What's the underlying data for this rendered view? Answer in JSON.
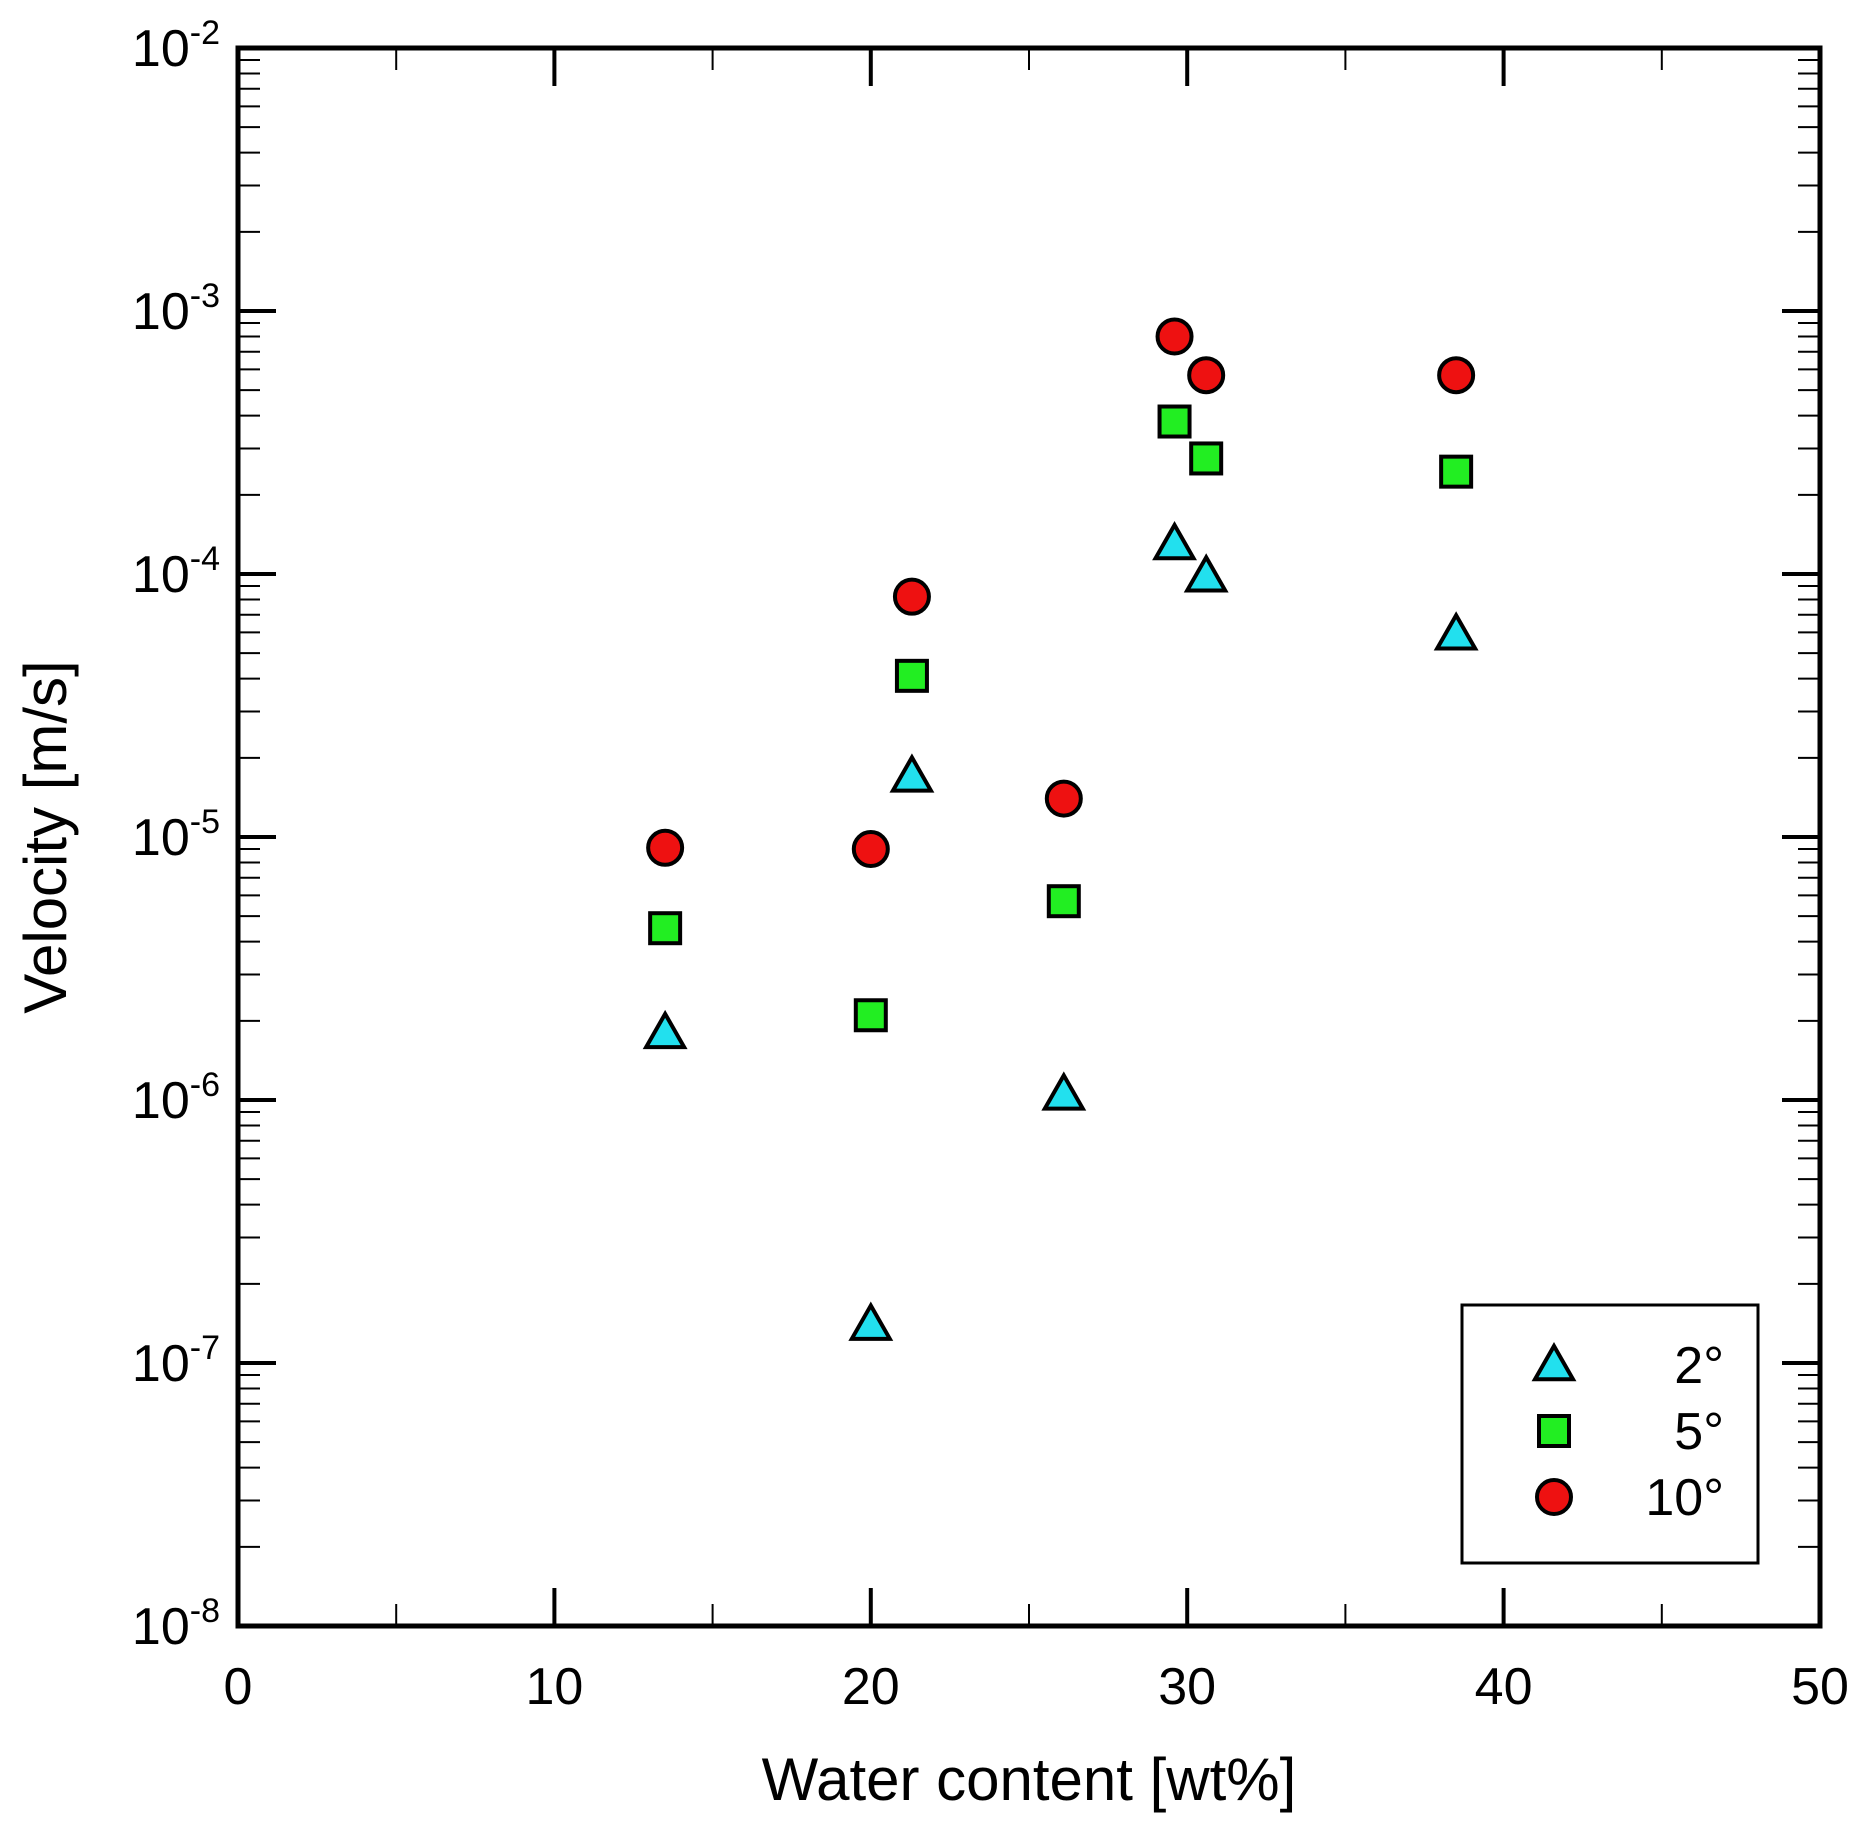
{
  "chart_data": {
    "type": "scatter",
    "title": "",
    "xlabel": "Water content [wt%]",
    "ylabel": "Velocity [m/s]",
    "xlim": [
      0,
      50
    ],
    "ylim": [
      1e-08,
      0.01
    ],
    "yscale": "log",
    "x_ticks": [
      {
        "value": 0,
        "label": "0"
      },
      {
        "value": 10,
        "label": "10"
      },
      {
        "value": 20,
        "label": "20"
      },
      {
        "value": 30,
        "label": "30"
      },
      {
        "value": 40,
        "label": "40"
      },
      {
        "value": 50,
        "label": "50"
      }
    ],
    "y_ticks": [
      {
        "exp": -8,
        "base": "10",
        "sup": "-8"
      },
      {
        "exp": -7,
        "base": "10",
        "sup": "-7"
      },
      {
        "exp": -6,
        "base": "10",
        "sup": "-6"
      },
      {
        "exp": -5,
        "base": "10",
        "sup": "-5"
      },
      {
        "exp": -4,
        "base": "10",
        "sup": "-4"
      },
      {
        "exp": -3,
        "base": "10",
        "sup": "-3"
      },
      {
        "exp": -2,
        "base": "10",
        "sup": "-2"
      }
    ],
    "grid": false,
    "legend_position": "bottom-right",
    "series": [
      {
        "name": "2°",
        "marker": "triangle",
        "color": "#22e0ee",
        "points": [
          {
            "x": 13.5,
            "y": 1.8e-06
          },
          {
            "x": 20.0,
            "y": 1.4e-07
          },
          {
            "x": 21.3,
            "y": 1.7e-05
          },
          {
            "x": 26.1,
            "y": 1.05e-06
          },
          {
            "x": 29.6,
            "y": 0.00013
          },
          {
            "x": 30.6,
            "y": 9.8e-05
          },
          {
            "x": 38.5,
            "y": 5.9e-05
          }
        ]
      },
      {
        "name": "5°",
        "marker": "square",
        "color": "#22ee22",
        "points": [
          {
            "x": 13.5,
            "y": 4.5e-06
          },
          {
            "x": 20.0,
            "y": 2.1e-06
          },
          {
            "x": 21.3,
            "y": 4.1e-05
          },
          {
            "x": 26.1,
            "y": 5.7e-06
          },
          {
            "x": 29.6,
            "y": 0.00038
          },
          {
            "x": 30.6,
            "y": 0.000275
          },
          {
            "x": 38.5,
            "y": 0.000245
          }
        ]
      },
      {
        "name": "10°",
        "marker": "circle",
        "color": "#ee1111",
        "points": [
          {
            "x": 13.5,
            "y": 9.1e-06
          },
          {
            "x": 20.0,
            "y": 9e-06
          },
          {
            "x": 21.3,
            "y": 8.2e-05
          },
          {
            "x": 26.1,
            "y": 1.4e-05
          },
          {
            "x": 29.6,
            "y": 0.0008
          },
          {
            "x": 30.6,
            "y": 0.00057
          },
          {
            "x": 38.5,
            "y": 0.00057
          }
        ]
      }
    ]
  }
}
